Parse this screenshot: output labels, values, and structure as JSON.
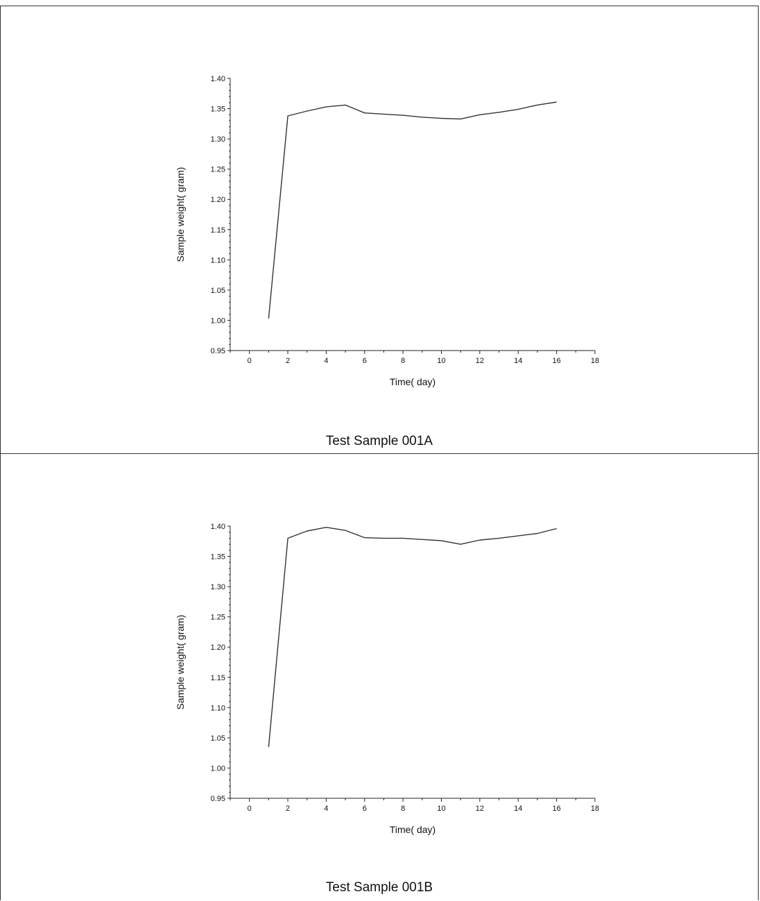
{
  "chart_data": [
    {
      "type": "line",
      "title": "Test Sample 001A",
      "xlabel": "Time( day)",
      "ylabel": "Sample weight( gram)",
      "xlim": [
        -1,
        18
      ],
      "ylim": [
        0.95,
        1.4
      ],
      "x_ticks": [
        0,
        2,
        4,
        6,
        8,
        10,
        12,
        14,
        16,
        18
      ],
      "y_ticks": [
        0.95,
        1.0,
        1.05,
        1.1,
        1.15,
        1.2,
        1.25,
        1.3,
        1.35,
        1.4
      ],
      "x_tick_labels": [
        "0",
        "2",
        "4",
        "6",
        "8",
        "10",
        "12",
        "14",
        "16",
        "18"
      ],
      "y_tick_labels": [
        "0.95",
        "1.00",
        "1.05",
        "1.10",
        "1.15",
        "1.20",
        "1.25",
        "1.30",
        "1.35",
        "1.40"
      ],
      "grid": false,
      "series": [
        {
          "x": [
            1,
            2,
            3,
            4,
            5,
            6,
            7,
            8,
            9,
            10,
            11,
            12,
            13,
            14,
            15,
            16
          ],
          "y": [
            1.003,
            1.338,
            1.346,
            1.353,
            1.356,
            1.343,
            1.341,
            1.339,
            1.336,
            1.334,
            1.333,
            1.34,
            1.344,
            1.349,
            1.356,
            1.361
          ]
        }
      ]
    },
    {
      "type": "line",
      "title": "Test Sample 001B",
      "xlabel": "Time( day)",
      "ylabel": "Sample weight( gram)",
      "xlim": [
        -1,
        18
      ],
      "ylim": [
        0.95,
        1.4
      ],
      "x_ticks": [
        0,
        2,
        4,
        6,
        8,
        10,
        12,
        14,
        16,
        18
      ],
      "y_ticks": [
        0.95,
        1.0,
        1.05,
        1.1,
        1.15,
        1.2,
        1.25,
        1.3,
        1.35,
        1.4
      ],
      "x_tick_labels": [
        "0",
        "2",
        "4",
        "6",
        "8",
        "10",
        "12",
        "14",
        "16",
        "18"
      ],
      "y_tick_labels": [
        "0.95",
        "1.00",
        "1.05",
        "1.10",
        "1.15",
        "1.20",
        "1.25",
        "1.30",
        "1.35",
        "1.40"
      ],
      "grid": false,
      "series": [
        {
          "x": [
            1,
            2,
            3,
            4,
            5,
            6,
            7,
            8,
            9,
            10,
            11,
            12,
            13,
            14,
            15,
            16
          ],
          "y": [
            1.035,
            1.38,
            1.392,
            1.398,
            1.393,
            1.381,
            1.38,
            1.38,
            1.378,
            1.376,
            1.37,
            1.377,
            1.38,
            1.384,
            1.388,
            1.396
          ]
        }
      ]
    }
  ],
  "colors": {
    "line": "#333333",
    "axis": "#222222",
    "border": "#333333",
    "background": "#ffffff"
  }
}
